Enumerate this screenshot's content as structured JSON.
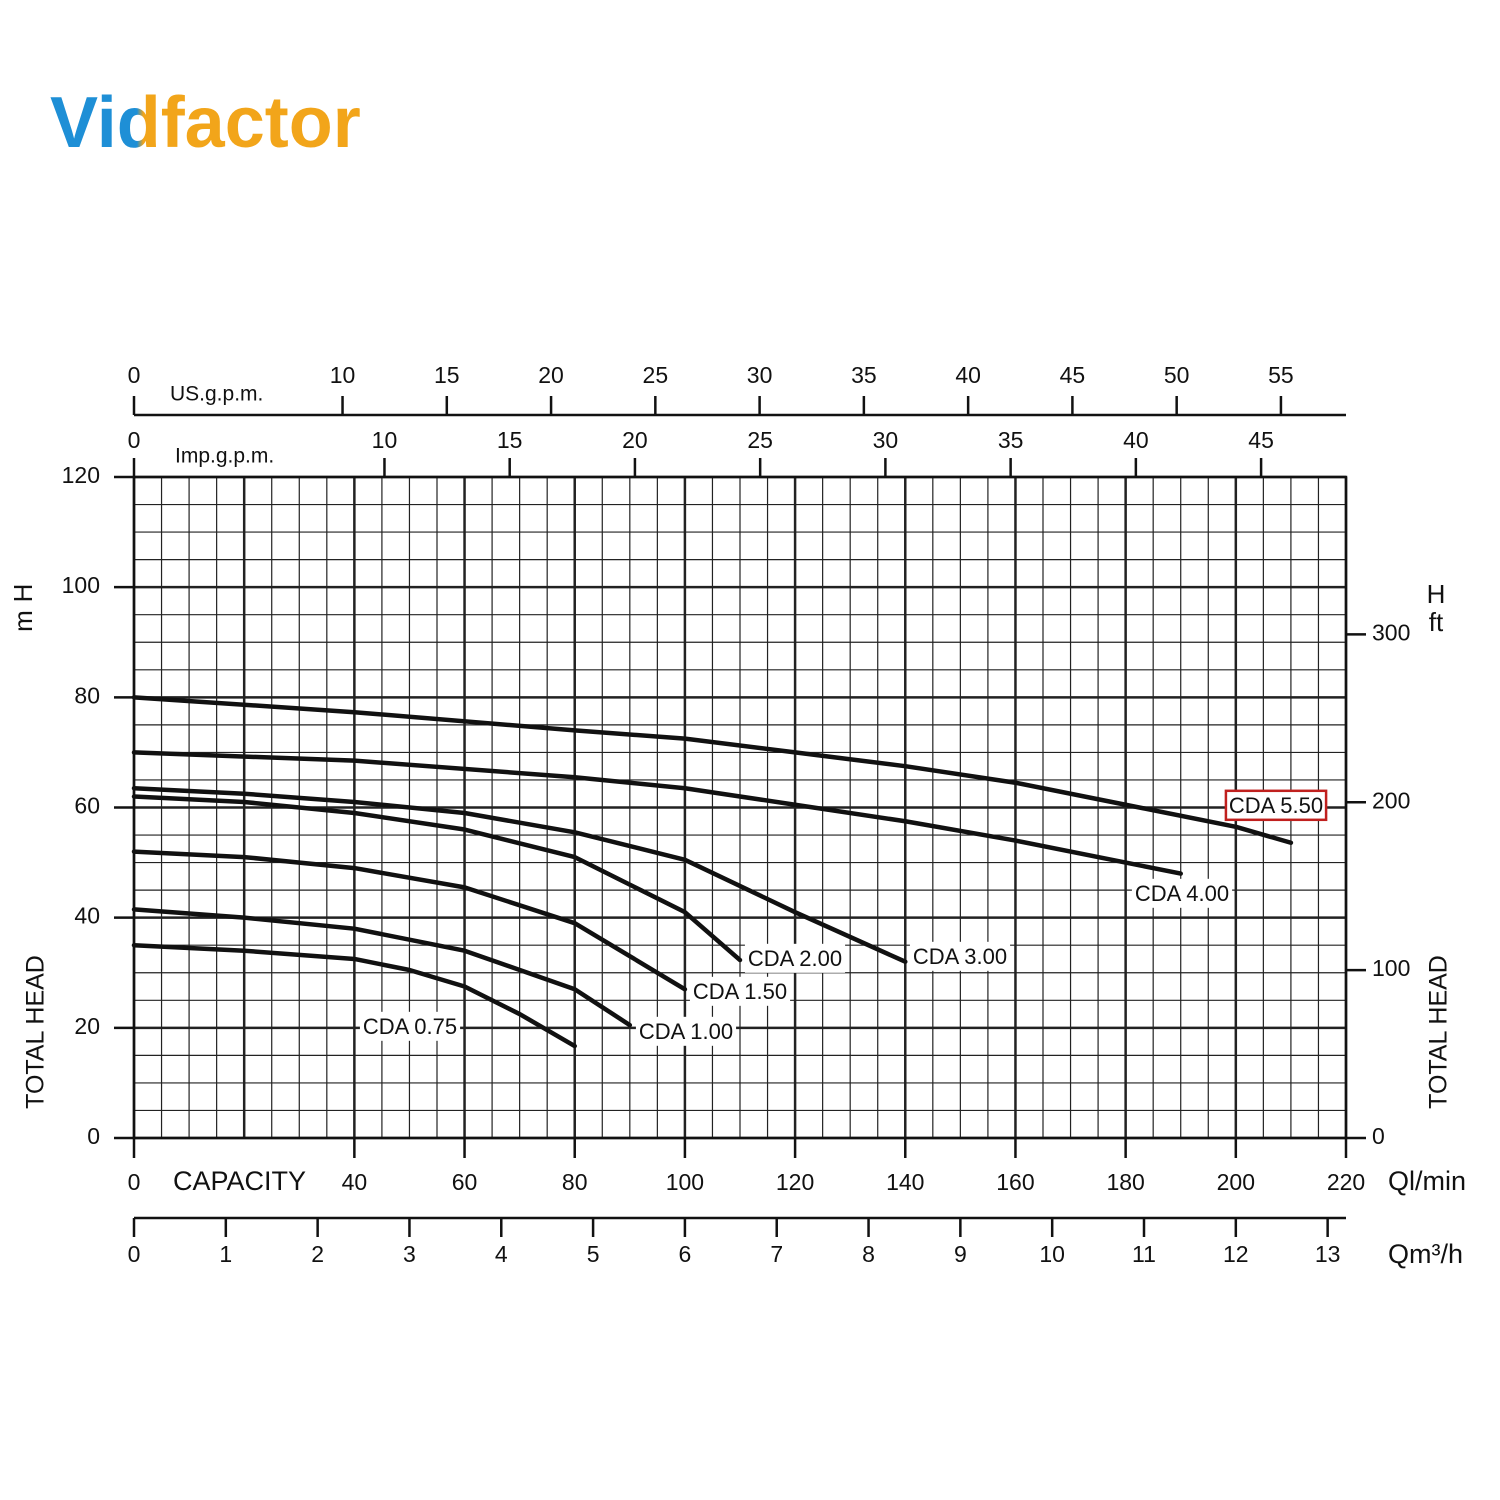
{
  "logo": "Vidfactor",
  "chart_data": {
    "type": "line",
    "x_label": "CAPACITY",
    "x_unit": "Ql/min",
    "y_label": "TOTAL HEAD",
    "y_unit_symbol": "H",
    "y_unit": "m",
    "xlim": [
      0,
      220
    ],
    "xticks": [
      0,
      40,
      60,
      80,
      100,
      120,
      140,
      160,
      180,
      200,
      220
    ],
    "ylim": [
      0,
      120
    ],
    "yticks": [
      0,
      20,
      40,
      60,
      80,
      100,
      120
    ],
    "grid": {
      "x_minor_step": 5,
      "x_major_step": 20,
      "y_minor_step": 5,
      "y_major_step": 20
    },
    "highlight_series": 6,
    "highlight_color": "#c0201e",
    "series": [
      {
        "name": "CDA 0.75",
        "color": "#111111",
        "x": [
          0,
          20,
          40,
          50,
          60,
          70,
          80
        ],
        "values": [
          35,
          34,
          32.5,
          30.5,
          27.5,
          22.5,
          16.7
        ]
      },
      {
        "name": "CDA 1.00",
        "color": "#111111",
        "x": [
          0,
          20,
          40,
          60,
          80,
          90
        ],
        "values": [
          41.5,
          40,
          38,
          34,
          27,
          20.5
        ]
      },
      {
        "name": "CDA 1.50",
        "color": "#111111",
        "x": [
          0,
          20,
          40,
          60,
          80,
          90,
          100
        ],
        "values": [
          52,
          51,
          49,
          45.5,
          39,
          33,
          27
        ]
      },
      {
        "name": "CDA 2.00",
        "color": "#111111",
        "x": [
          0,
          20,
          40,
          60,
          80,
          100,
          110
        ],
        "values": [
          62,
          61,
          59,
          56,
          51,
          41,
          32.3
        ]
      },
      {
        "name": "CDA 3.00",
        "color": "#111111",
        "x": [
          0,
          20,
          40,
          60,
          80,
          100,
          120,
          140
        ],
        "values": [
          63.5,
          62.5,
          61,
          59,
          55.5,
          50.5,
          41,
          32
        ]
      },
      {
        "name": "CDA 4.00",
        "color": "#111111",
        "x": [
          0,
          40,
          80,
          100,
          120,
          140,
          160,
          180,
          190
        ],
        "values": [
          70,
          68.5,
          65.5,
          63.5,
          60.5,
          57.5,
          54,
          50,
          48
        ]
      },
      {
        "name": "CDA 5.50",
        "color": "#111111",
        "x": [
          0,
          40,
          80,
          100,
          120,
          140,
          160,
          180,
          200,
          210
        ],
        "values": [
          80,
          77.3,
          74,
          72.5,
          70,
          67.5,
          64.5,
          60.5,
          56.5,
          53.6
        ]
      }
    ],
    "secondary_axes": [
      {
        "position": "top",
        "label": "US.g.p.m.",
        "lim": [
          0,
          58.12
        ],
        "ticks": [
          0,
          10,
          15,
          20,
          25,
          30,
          35,
          40,
          45,
          50,
          55
        ]
      },
      {
        "position": "top",
        "label": "Imp.g.p.m.",
        "lim": [
          0,
          48.39
        ],
        "ticks": [
          0,
          10,
          15,
          20,
          25,
          30,
          35,
          40,
          45
        ]
      },
      {
        "position": "bottom",
        "label": "Qm³/h",
        "lim": [
          0,
          13.2
        ],
        "ticks": [
          0,
          1,
          2,
          3,
          4,
          5,
          6,
          7,
          8,
          9,
          10,
          11,
          12,
          13
        ]
      },
      {
        "position": "right",
        "label": "TOTAL HEAD",
        "unit_symbol": "H",
        "unit": "ft",
        "lim": [
          0,
          393.7
        ],
        "ticks": [
          0,
          100,
          200,
          300
        ]
      }
    ]
  }
}
